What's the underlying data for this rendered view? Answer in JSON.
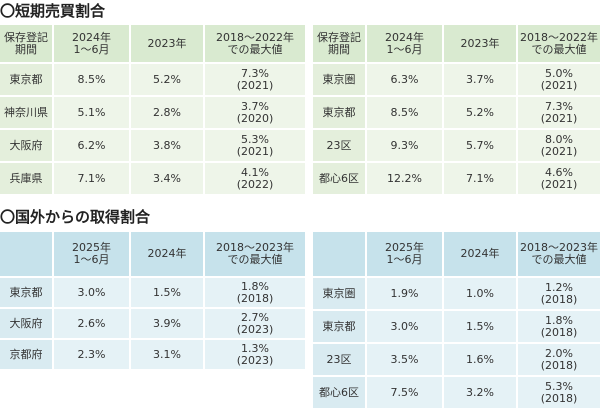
{
  "sections": [
    {
      "title": "〇短期売買割合",
      "tables": [
        {
          "header": [
            "保存登記\n期間",
            "2024年\n1～6月",
            "2023年",
            "2018～2022年\nでの最大値"
          ],
          "rows": [
            [
              "東京都",
              "8.5%",
              "5.2%",
              "7.3%\n(2021)"
            ],
            [
              "神奈川県",
              "5.1%",
              "2.8%",
              "3.7%\n(2020)"
            ],
            [
              "大阪府",
              "6.2%",
              "3.8%",
              "5.3%\n(2021)"
            ],
            [
              "兵庫県",
              "7.1%",
              "3.4%",
              "4.1%\n(2022)"
            ]
          ]
        },
        {
          "header": [
            "保存登記\n期間",
            "2024年\n1～6月",
            "2023年",
            "2018～2022年\nでの最大値"
          ],
          "rows": [
            [
              "東京圏",
              "6.3%",
              "3.7%",
              "5.0%\n(2021)"
            ],
            [
              "東京都",
              "8.5%",
              "5.2%",
              "7.3%\n(2021)"
            ],
            [
              "23区",
              "9.3%",
              "5.7%",
              "8.0%\n(2021)"
            ],
            [
              "都心6区",
              "12.2%",
              "7.1%",
              "4.6%\n(2021)"
            ]
          ]
        }
      ]
    },
    {
      "title": "〇国外からの取得割合",
      "tables": [
        {
          "header": [
            "2025年\n1～6月",
            "2024年",
            "2018～2023年\nでの最大値"
          ],
          "rows": [
            [
              "東京都",
              "3.0%",
              "1.5%",
              "1.8%\n(2018)"
            ],
            [
              "大阪府",
              "2.6%",
              "3.9%",
              "2.7%\n(2023)"
            ],
            [
              "京都府",
              "2.3%",
              "3.1%",
              "1.3%\n(2023)"
            ]
          ]
        },
        {
          "header": [
            "2025年\n1～6月",
            "2024年",
            "2018～2023年\nでの最大値"
          ],
          "rows": [
            [
              "東京圏",
              "1.9%",
              "1.0%",
              "1.2%\n(2018)"
            ],
            [
              "東京都",
              "3.0%",
              "1.5%",
              "1.8%\n(2018)"
            ],
            [
              "23区",
              "3.5%",
              "1.6%",
              "2.0%\n(2018)"
            ],
            [
              "都心6区",
              "7.5%",
              "3.2%",
              "5.3%\n(2018)"
            ]
          ]
        }
      ]
    }
  ]
}
